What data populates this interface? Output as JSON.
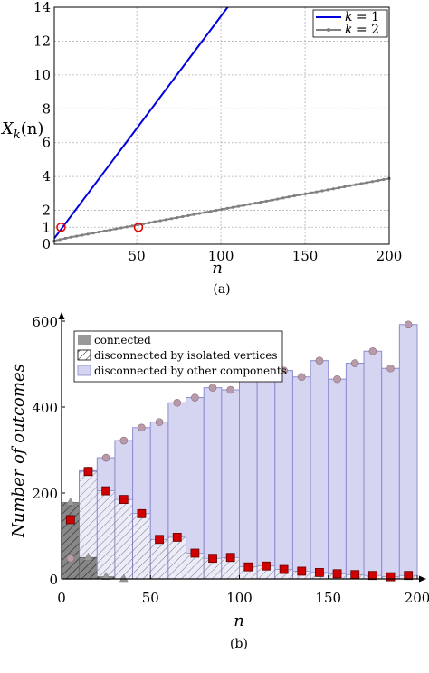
{
  "chart_data": [
    {
      "panel": "(a)",
      "type": "line",
      "xlabel": "n",
      "ylabel": "X_k(n)",
      "xlim": [
        1,
        200
      ],
      "ylim": [
        0,
        14
      ],
      "x_ticks": [
        50,
        100,
        150,
        200
      ],
      "y_ticks": [
        0,
        1,
        2,
        4,
        6,
        8,
        10,
        12,
        14
      ],
      "grid": true,
      "legend_position": "top-right",
      "series": [
        {
          "name": "k = 1",
          "color": "#0000dd",
          "x": [
            1,
            104
          ],
          "y": [
            0.35,
            14
          ]
        },
        {
          "name": "k = 2",
          "color": "#808080",
          "marker": "dot",
          "x": [
            1,
            10,
            20,
            30,
            40,
            50,
            60,
            70,
            80,
            90,
            100,
            110,
            120,
            130,
            140,
            150,
            160,
            170,
            180,
            190,
            200
          ],
          "y": [
            0.2,
            0.4,
            0.58,
            0.77,
            0.95,
            1.13,
            1.32,
            1.5,
            1.68,
            1.87,
            2.05,
            2.23,
            2.42,
            2.6,
            2.79,
            2.97,
            3.15,
            3.33,
            3.52,
            3.7,
            3.88
          ]
        }
      ],
      "annotations": [
        {
          "type": "circle",
          "color": "#e00000",
          "x": 5,
          "y": 1
        },
        {
          "type": "circle",
          "color": "#e00000",
          "x": 51,
          "y": 1
        }
      ],
      "caption": "(a)"
    },
    {
      "panel": "(b)",
      "type": "bar",
      "xlabel": "n",
      "ylabel": "Number of outcomes",
      "xlim": [
        0,
        200
      ],
      "ylim": [
        0,
        600
      ],
      "x_ticks": [
        0,
        50,
        100,
        150,
        200
      ],
      "y_ticks": [
        0,
        200,
        400,
        600
      ],
      "legend_position": "top-left",
      "x": [
        5,
        15,
        25,
        35,
        45,
        55,
        65,
        75,
        85,
        95,
        105,
        115,
        125,
        135,
        145,
        155,
        165,
        175,
        185,
        195
      ],
      "series": [
        {
          "name": "connected",
          "color": "#999999",
          "values": [
            178,
            50,
            5,
            0,
            0,
            0,
            0,
            0,
            0,
            0,
            0,
            0,
            0,
            0,
            0,
            0,
            0,
            0,
            0,
            0
          ]
        },
        {
          "name": "disconnected by isolated vertices",
          "color": "#000000",
          "values": [
            138,
            250,
            205,
            185,
            152,
            92,
            97,
            60,
            48,
            50,
            28,
            30,
            22,
            18,
            15,
            12,
            10,
            8,
            5,
            8
          ]
        },
        {
          "name": "disconnected by other components",
          "color": "#d5d5f2",
          "values": [
            48,
            252,
            282,
            322,
            352,
            365,
            410,
            422,
            445,
            440,
            470,
            485,
            485,
            470,
            508,
            465,
            502,
            530,
            490,
            592
          ]
        }
      ],
      "caption": "(b)"
    }
  ],
  "panel_a": {
    "ylabel_main": "X",
    "ylabel_sub": "k",
    "ylabel_arg": "(n)",
    "xlabel": "n",
    "legend": [
      {
        "var": "k",
        "rest": " = 1"
      },
      {
        "var": "k",
        "rest": " = 2"
      }
    ],
    "caption": "(a)"
  },
  "panel_b": {
    "ylabel": "Number of outcomes",
    "xlabel": "n",
    "legend": [
      "connected",
      "disconnected by isolated vertices",
      "disconnected by other components"
    ],
    "caption": "(b)"
  }
}
